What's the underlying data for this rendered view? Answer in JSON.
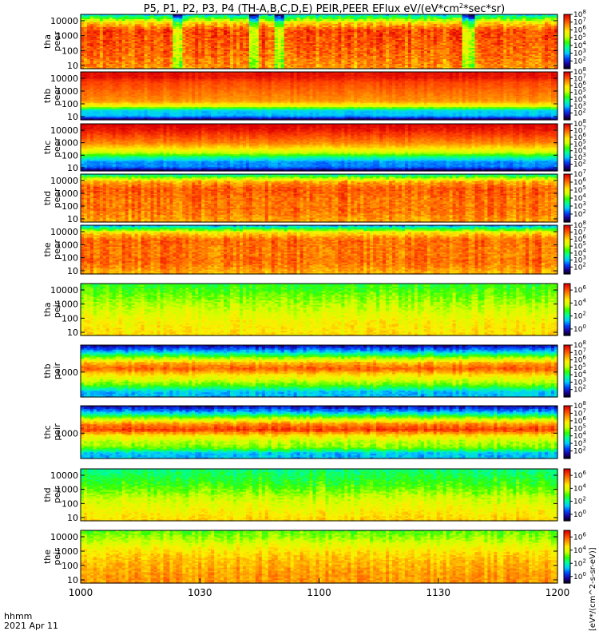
{
  "chart_data": {
    "type": "heatmap",
    "title": "P5, P1, P2, P3, P4 (TH-A,B,C,D,E) PEIR,PEER EFlux eV/(eV*cm^2*sec*sr)",
    "title_parts": {
      "main": "P5, P1, P2, P3, P4 (TH-A,B,C,D,E) PEIR,PEER EFlux eV/(eV*cm",
      "sup": "2",
      "tail": "*sec*sr)"
    },
    "x_axis_ticks": [
      "1000",
      "1030",
      "1100",
      "1130",
      "1200"
    ],
    "x_label_1": "hhmm",
    "x_label_2": "2021 Apr 11",
    "xlim": [
      "10:00",
      "12:00"
    ],
    "colorbar_label": "[eV*/(cm^2-s-sr-eV)]",
    "colormap": [
      "#000000",
      "#1a0099",
      "#0044ff",
      "#00ccff",
      "#00ff99",
      "#33ff00",
      "#ccff00",
      "#ffee00",
      "#ff9900",
      "#ff4400",
      "#dd0000"
    ],
    "panels": [
      {
        "probe": "tha",
        "species": "peer",
        "y_ticks": [
          "10",
          "100",
          "1000",
          "10000"
        ],
        "cb_ticks": [
          "10^2",
          "10^3",
          "10^4",
          "10^5",
          "10^6",
          "10^7",
          "10^8"
        ],
        "cb_range": [
          1,
          8
        ],
        "profile": [
          0.35,
          0.72,
          0.9,
          0.88,
          0.87,
          0.85,
          0.82,
          0.8
        ],
        "variability": 0.12,
        "dropouts": [
          [
            0.19,
            0.21
          ],
          [
            0.35,
            0.37
          ],
          [
            0.405,
            0.425
          ],
          [
            0.8,
            0.82
          ]
        ]
      },
      {
        "probe": "thb",
        "species": "peer",
        "y_ticks": [
          "10",
          "100",
          "1000",
          "10000"
        ],
        "cb_ticks": [
          "10^2",
          "10^3",
          "10^4",
          "10^5",
          "10^6",
          "10^7",
          "10^8"
        ],
        "cb_range": [
          1,
          8
        ],
        "profile": [
          0.97,
          0.97,
          0.9,
          0.88,
          0.85,
          0.83,
          0.8,
          0.65,
          0.3,
          0.3,
          0.0
        ],
        "variability": 0.04,
        "dropouts": []
      },
      {
        "probe": "thc",
        "species": "peer",
        "y_ticks": [
          "10",
          "100",
          "1000",
          "10000"
        ],
        "cb_ticks": [
          "10^2",
          "10^3",
          "10^4",
          "10^5",
          "10^6",
          "10^7",
          "10^8"
        ],
        "cb_range": [
          1,
          8
        ],
        "profile": [
          1.0,
          0.97,
          0.92,
          0.87,
          0.82,
          0.72,
          0.6,
          0.4,
          0.25,
          0.25,
          0.0
        ],
        "variability": 0.05,
        "dropouts": []
      },
      {
        "probe": "thd",
        "species": "peer",
        "y_ticks": [
          "10",
          "100",
          "1000",
          "10000"
        ],
        "cb_ticks": [
          "10^2",
          "10^3",
          "10^4",
          "10^5",
          "10^6",
          "10^7"
        ],
        "cb_range": [
          1,
          7
        ],
        "profile": [
          0.4,
          0.78,
          0.88,
          0.86,
          0.84,
          0.85,
          0.82,
          0.78
        ],
        "variability": 0.1,
        "dropouts": []
      },
      {
        "probe": "the",
        "species": "peer",
        "y_ticks": [
          "10",
          "100",
          "1000",
          "10000"
        ],
        "cb_ticks": [
          "10^2",
          "10^3",
          "10^4",
          "10^5",
          "10^6",
          "10^7",
          "10^8"
        ],
        "cb_range": [
          1,
          8
        ],
        "profile": [
          0.3,
          0.72,
          0.86,
          0.85,
          0.84,
          0.86,
          0.82,
          0.76
        ],
        "variability": 0.1,
        "dropouts": []
      },
      {
        "probe": "tha",
        "species": "peir",
        "y_ticks": [
          "10",
          "100",
          "1000",
          "10000"
        ],
        "cb_ticks": [
          "10^0",
          "10^2",
          "10^4",
          "10^6"
        ],
        "cb_range": [
          -1,
          7
        ],
        "profile": [
          0.48,
          0.52,
          0.56,
          0.6,
          0.64,
          0.68,
          0.7,
          0.72
        ],
        "variability": 0.08,
        "dropouts": []
      },
      {
        "probe": "thb",
        "species": "peir",
        "y_ticks": [
          "1000"
        ],
        "cb_ticks": [
          "10^2",
          "10^3",
          "10^4",
          "10^5",
          "10^6",
          "10^7",
          "10^8"
        ],
        "cb_range": [
          1,
          8
        ],
        "profile": [
          0.12,
          0.3,
          0.55,
          0.78,
          0.88,
          0.72,
          0.62,
          0.5,
          0.3,
          0.3
        ],
        "variability": 0.08,
        "dropouts": []
      },
      {
        "probe": "thc",
        "species": "peir",
        "y_ticks": [
          "1000"
        ],
        "cb_ticks": [
          "10^2",
          "10^3",
          "10^4",
          "10^5",
          "10^6",
          "10^7",
          "10^8"
        ],
        "cb_range": [
          1,
          8
        ],
        "profile": [
          0.12,
          0.3,
          0.58,
          0.82,
          0.92,
          0.7,
          0.6,
          0.55,
          0.3,
          0.3
        ],
        "variability": 0.08,
        "dropouts": []
      },
      {
        "probe": "thd",
        "species": "peir",
        "y_ticks": [
          "10",
          "100",
          "1000",
          "10000"
        ],
        "cb_ticks": [
          "10^0",
          "10^2",
          "10^4",
          "10^6"
        ],
        "cb_range": [
          -1,
          7
        ],
        "profile": [
          0.42,
          0.46,
          0.5,
          0.56,
          0.62,
          0.66,
          0.7,
          0.74
        ],
        "variability": 0.08,
        "dropouts": []
      },
      {
        "probe": "the",
        "species": "peir",
        "y_ticks": [
          "10",
          "100",
          "1000",
          "10000"
        ],
        "cb_ticks": [
          "10^0",
          "10^2",
          "10^4",
          "10^6"
        ],
        "cb_range": [
          -1,
          7
        ],
        "profile": [
          0.52,
          0.58,
          0.66,
          0.72,
          0.76,
          0.78,
          0.8,
          0.8
        ],
        "variability": 0.08,
        "dropouts": []
      }
    ]
  }
}
